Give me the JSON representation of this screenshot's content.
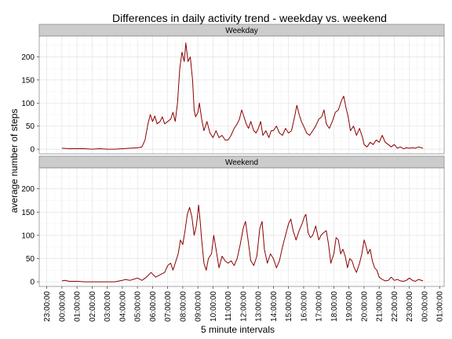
{
  "chart_data": {
    "type": "line",
    "title": "Differences in daily activity trend - weekday vs. weekend",
    "xlabel": "5 minute intervals",
    "ylabel": "average number of steps",
    "ylim": [
      -10,
      245
    ],
    "y_ticks": [
      0,
      50,
      100,
      150,
      200
    ],
    "x_tick_labels": [
      "23:00:00",
      "00:00:00",
      "01:00:00",
      "02:00:00",
      "03:00:00",
      "04:00:00",
      "05:00:00",
      "06:00:00",
      "07:00:00",
      "08:00:00",
      "09:00:00",
      "10:00:00",
      "11:00:00",
      "12:00:00",
      "13:00:00",
      "14:00:00",
      "15:00:00",
      "16:00:00",
      "17:00:00",
      "18:00:00",
      "19:00:00",
      "20:00:00",
      "21:00:00",
      "22:00:00",
      "23:00:00",
      "00:00:00",
      "01:00:00"
    ],
    "x_tick_hours": [
      -1,
      0,
      1,
      2,
      3,
      4,
      5,
      6,
      7,
      8,
      9,
      10,
      11,
      12,
      13,
      14,
      15,
      16,
      17,
      18,
      19,
      20,
      21,
      22,
      23,
      24,
      25
    ],
    "x_range_hours": [
      -1.5,
      25.3
    ],
    "grid": true,
    "line_color": "#8b0000",
    "panels": [
      {
        "name": "Weekday",
        "points": [
          [
            0,
            2
          ],
          [
            0.5,
            1
          ],
          [
            1,
            1
          ],
          [
            1.5,
            1
          ],
          [
            2,
            0
          ],
          [
            2.5,
            1
          ],
          [
            3,
            0
          ],
          [
            3.5,
            0
          ],
          [
            4,
            1
          ],
          [
            4.5,
            2
          ],
          [
            5,
            3
          ],
          [
            5.3,
            5
          ],
          [
            5.5,
            20
          ],
          [
            5.7,
            55
          ],
          [
            5.85,
            75
          ],
          [
            6,
            60
          ],
          [
            6.15,
            72
          ],
          [
            6.3,
            55
          ],
          [
            6.5,
            60
          ],
          [
            6.65,
            70
          ],
          [
            6.8,
            55
          ],
          [
            7,
            60
          ],
          [
            7.2,
            65
          ],
          [
            7.35,
            80
          ],
          [
            7.5,
            60
          ],
          [
            7.65,
            100
          ],
          [
            7.8,
            175
          ],
          [
            7.95,
            210
          ],
          [
            8.1,
            190
          ],
          [
            8.2,
            230
          ],
          [
            8.35,
            190
          ],
          [
            8.5,
            200
          ],
          [
            8.65,
            150
          ],
          [
            8.75,
            85
          ],
          [
            8.85,
            70
          ],
          [
            9,
            80
          ],
          [
            9.1,
            100
          ],
          [
            9.25,
            65
          ],
          [
            9.4,
            40
          ],
          [
            9.6,
            60
          ],
          [
            9.8,
            35
          ],
          [
            10,
            25
          ],
          [
            10.2,
            40
          ],
          [
            10.4,
            25
          ],
          [
            10.6,
            30
          ],
          [
            10.8,
            20
          ],
          [
            11,
            20
          ],
          [
            11.2,
            30
          ],
          [
            11.4,
            45
          ],
          [
            11.6,
            55
          ],
          [
            11.75,
            65
          ],
          [
            11.9,
            85
          ],
          [
            12.05,
            70
          ],
          [
            12.2,
            55
          ],
          [
            12.35,
            45
          ],
          [
            12.5,
            60
          ],
          [
            12.7,
            40
          ],
          [
            12.85,
            35
          ],
          [
            13,
            45
          ],
          [
            13.15,
            60
          ],
          [
            13.3,
            30
          ],
          [
            13.5,
            40
          ],
          [
            13.7,
            25
          ],
          [
            13.85,
            40
          ],
          [
            14,
            40
          ],
          [
            14.2,
            50
          ],
          [
            14.4,
            35
          ],
          [
            14.6,
            30
          ],
          [
            14.8,
            45
          ],
          [
            15,
            35
          ],
          [
            15.2,
            40
          ],
          [
            15.4,
            70
          ],
          [
            15.55,
            95
          ],
          [
            15.7,
            75
          ],
          [
            15.85,
            60
          ],
          [
            16,
            50
          ],
          [
            16.2,
            35
          ],
          [
            16.4,
            30
          ],
          [
            16.6,
            40
          ],
          [
            16.8,
            50
          ],
          [
            17,
            65
          ],
          [
            17.2,
            70
          ],
          [
            17.35,
            85
          ],
          [
            17.5,
            55
          ],
          [
            17.7,
            45
          ],
          [
            17.9,
            60
          ],
          [
            18.1,
            80
          ],
          [
            18.3,
            85
          ],
          [
            18.5,
            105
          ],
          [
            18.65,
            115
          ],
          [
            18.8,
            90
          ],
          [
            18.95,
            70
          ],
          [
            19.1,
            40
          ],
          [
            19.3,
            50
          ],
          [
            19.5,
            30
          ],
          [
            19.7,
            45
          ],
          [
            19.9,
            25
          ],
          [
            20,
            10
          ],
          [
            20.2,
            5
          ],
          [
            20.4,
            15
          ],
          [
            20.6,
            10
          ],
          [
            20.8,
            20
          ],
          [
            21,
            15
          ],
          [
            21.2,
            30
          ],
          [
            21.4,
            15
          ],
          [
            21.6,
            10
          ],
          [
            21.8,
            5
          ],
          [
            22,
            10
          ],
          [
            22.2,
            2
          ],
          [
            22.4,
            5
          ],
          [
            22.6,
            1
          ],
          [
            22.8,
            3
          ],
          [
            23,
            2
          ],
          [
            23.2,
            3
          ],
          [
            23.4,
            2
          ],
          [
            23.6,
            5
          ],
          [
            23.9,
            2
          ]
        ]
      },
      {
        "name": "Weekend",
        "points": [
          [
            0,
            2
          ],
          [
            0.2,
            3
          ],
          [
            0.5,
            1
          ],
          [
            1,
            1
          ],
          [
            1.5,
            0
          ],
          [
            2,
            0
          ],
          [
            2.5,
            0
          ],
          [
            3,
            0
          ],
          [
            3.5,
            0
          ],
          [
            4,
            3
          ],
          [
            4.2,
            5
          ],
          [
            4.5,
            3
          ],
          [
            4.7,
            5
          ],
          [
            5,
            8
          ],
          [
            5.3,
            3
          ],
          [
            5.6,
            10
          ],
          [
            5.9,
            20
          ],
          [
            6.2,
            10
          ],
          [
            6.5,
            15
          ],
          [
            6.8,
            20
          ],
          [
            7,
            35
          ],
          [
            7.2,
            40
          ],
          [
            7.35,
            25
          ],
          [
            7.5,
            40
          ],
          [
            7.7,
            60
          ],
          [
            7.85,
            90
          ],
          [
            8,
            80
          ],
          [
            8.15,
            110
          ],
          [
            8.3,
            145
          ],
          [
            8.45,
            160
          ],
          [
            8.6,
            140
          ],
          [
            8.75,
            100
          ],
          [
            8.9,
            120
          ],
          [
            9.05,
            165
          ],
          [
            9.15,
            130
          ],
          [
            9.25,
            90
          ],
          [
            9.4,
            40
          ],
          [
            9.55,
            25
          ],
          [
            9.7,
            50
          ],
          [
            9.9,
            60
          ],
          [
            10.05,
            100
          ],
          [
            10.2,
            70
          ],
          [
            10.4,
            30
          ],
          [
            10.6,
            55
          ],
          [
            10.8,
            45
          ],
          [
            11,
            40
          ],
          [
            11.2,
            45
          ],
          [
            11.4,
            35
          ],
          [
            11.6,
            50
          ],
          [
            11.8,
            80
          ],
          [
            12,
            115
          ],
          [
            12.15,
            130
          ],
          [
            12.3,
            95
          ],
          [
            12.5,
            45
          ],
          [
            12.7,
            35
          ],
          [
            12.9,
            55
          ],
          [
            13.1,
            115
          ],
          [
            13.25,
            130
          ],
          [
            13.4,
            70
          ],
          [
            13.6,
            40
          ],
          [
            13.8,
            60
          ],
          [
            14,
            50
          ],
          [
            14.2,
            30
          ],
          [
            14.4,
            45
          ],
          [
            14.6,
            75
          ],
          [
            14.8,
            100
          ],
          [
            15,
            125
          ],
          [
            15.15,
            135
          ],
          [
            15.3,
            110
          ],
          [
            15.5,
            90
          ],
          [
            15.7,
            110
          ],
          [
            15.9,
            125
          ],
          [
            16.05,
            140
          ],
          [
            16.15,
            145
          ],
          [
            16.3,
            105
          ],
          [
            16.45,
            95
          ],
          [
            16.6,
            100
          ],
          [
            16.8,
            120
          ],
          [
            17,
            90
          ],
          [
            17.15,
            100
          ],
          [
            17.3,
            105
          ],
          [
            17.5,
            110
          ],
          [
            17.65,
            80
          ],
          [
            17.8,
            40
          ],
          [
            18,
            60
          ],
          [
            18.15,
            95
          ],
          [
            18.3,
            90
          ],
          [
            18.45,
            60
          ],
          [
            18.6,
            70
          ],
          [
            18.75,
            55
          ],
          [
            18.9,
            30
          ],
          [
            19.05,
            50
          ],
          [
            19.2,
            45
          ],
          [
            19.35,
            30
          ],
          [
            19.5,
            20
          ],
          [
            19.7,
            40
          ],
          [
            19.85,
            60
          ],
          [
            20,
            90
          ],
          [
            20.1,
            80
          ],
          [
            20.25,
            60
          ],
          [
            20.4,
            70
          ],
          [
            20.55,
            45
          ],
          [
            20.7,
            30
          ],
          [
            20.85,
            25
          ],
          [
            21,
            10
          ],
          [
            21.2,
            5
          ],
          [
            21.4,
            2
          ],
          [
            21.6,
            3
          ],
          [
            21.8,
            10
          ],
          [
            22,
            3
          ],
          [
            22.2,
            5
          ],
          [
            22.4,
            2
          ],
          [
            22.6,
            1
          ],
          [
            22.8,
            3
          ],
          [
            23,
            8
          ],
          [
            23.2,
            3
          ],
          [
            23.4,
            1
          ],
          [
            23.6,
            5
          ],
          [
            23.9,
            2
          ]
        ]
      }
    ]
  }
}
